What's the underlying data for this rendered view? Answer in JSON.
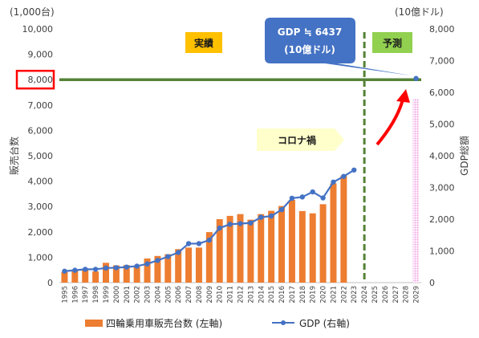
{
  "chart_data": {
    "type": "bar",
    "left_unit": "(1,000台)",
    "right_unit": "(10億ドル)",
    "ylabel_left": "販売台数",
    "ylabel_right": "GDP総額",
    "left_ticks": [
      "0",
      "1,000",
      "2,000",
      "3,000",
      "4,000",
      "5,000",
      "6,000",
      "7,000",
      "8,000",
      "9,000",
      "10,000"
    ],
    "right_ticks": [
      "0",
      "1,000",
      "2,000",
      "3,000",
      "4,000",
      "5,000",
      "6,000",
      "7,000",
      "8,000"
    ],
    "ylim_left": [
      0,
      10000
    ],
    "ylim_right": [
      0,
      8000
    ],
    "categories": [
      "1995",
      "1996",
      "1997",
      "1998",
      "1999",
      "2000",
      "2001",
      "2002",
      "2003",
      "2004",
      "2005",
      "2006",
      "2007",
      "2008",
      "2009",
      "2010",
      "2011",
      "2012",
      "2013",
      "2014",
      "2015",
      "2016",
      "2017",
      "2018",
      "2019",
      "2020",
      "2021",
      "2022",
      "2023",
      "2024",
      "2025",
      "2026",
      "2027",
      "2028",
      "2029"
    ],
    "series": [
      {
        "name": "四輪乗用車販売台数 (左軸)",
        "axis": "left",
        "kind": "bar",
        "color": "#ED7D31",
        "values": [
          420,
          480,
          490,
          440,
          780,
          680,
          690,
          620,
          950,
          1050,
          1120,
          1320,
          1380,
          1380,
          1990,
          2500,
          2630,
          2700,
          2480,
          2700,
          2830,
          3020,
          3260,
          2820,
          2730,
          3090,
          3910,
          4220,
          null,
          null,
          null,
          null,
          null,
          null,
          null
        ]
      },
      {
        "name": "GDP (右軸)",
        "axis": "right",
        "kind": "line",
        "color": "#4472C4",
        "values": [
          360,
          390,
          420,
          420,
          460,
          470,
          490,
          520,
          590,
          700,
          820,
          950,
          1230,
          1230,
          1340,
          1720,
          1840,
          1860,
          1880,
          2060,
          2100,
          2300,
          2660,
          2700,
          2860,
          2670,
          3170,
          3350,
          3550,
          null,
          null,
          null,
          null,
          null,
          6437
        ]
      }
    ],
    "projection_bar": {
      "category": "2029",
      "value": 7250,
      "axis": "left",
      "color": "#F4A6E6"
    },
    "reference_line": {
      "label": "8,000",
      "value": 8000,
      "axis": "left",
      "color": "#548235"
    },
    "divider_after": "2023",
    "divider_color": "#548235",
    "grid": false,
    "legend_position": "bottom"
  },
  "annotations": {
    "actual_label": "実績",
    "forecast_label": "予測",
    "corona_label": "コロナ禍",
    "callout_line1": "GDP ≒ 6437",
    "callout_line2": "(10億ドル)",
    "highlighted_tick": "8,000"
  },
  "colors": {
    "actual_box": "#FFC000",
    "forecast_box": "#92D050",
    "corona_box": "#FFFFCC",
    "callout_box": "#4472C4",
    "arrow": "#FF0000",
    "highlight_border": "#FF0000"
  }
}
